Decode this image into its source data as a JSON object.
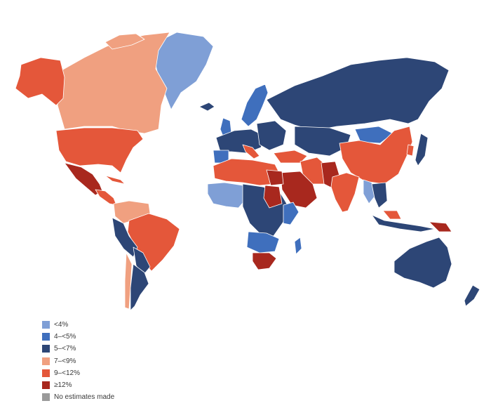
{
  "colors": {
    "lt4": "#7f9fd6",
    "4to5": "#3f6fbd",
    "5to7": "#2d4676",
    "7to9": "#f0a080",
    "9to12": "#e4573a",
    "ge12": "#a8281e",
    "none": "#9a9a9a"
  },
  "legend": [
    {
      "label": "<4%",
      "color": "#7f9fd6"
    },
    {
      "label": "4–<5%",
      "color": "#3f6fbd"
    },
    {
      "label": "5–<7%",
      "color": "#2d4676"
    },
    {
      "label": "7–<9%",
      "color": "#f0a080"
    },
    {
      "label": "9–<12%",
      "color": "#e4573a"
    },
    {
      "label": "≥12%",
      "color": "#a8281e"
    },
    {
      "label": "No estimates made",
      "color": "#9a9a9a"
    }
  ]
}
